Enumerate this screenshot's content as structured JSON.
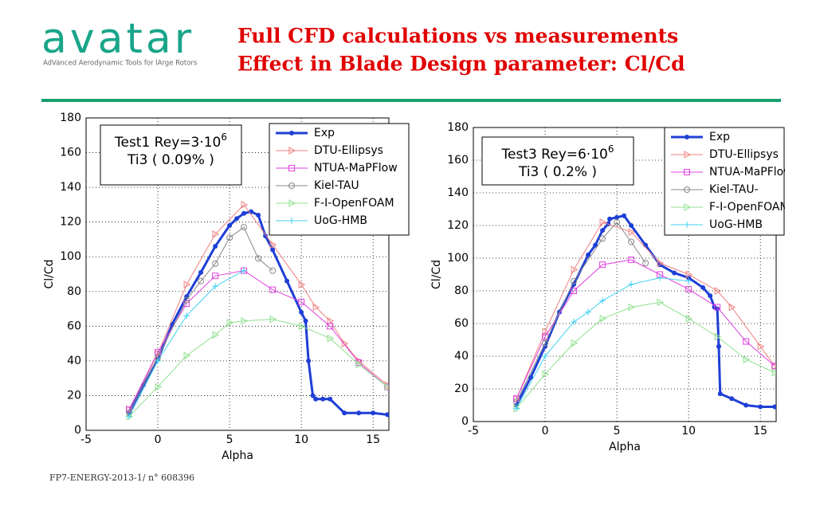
{
  "header": {
    "logo": "avatar",
    "tagline": "AdVanced Aerodynamic Tools for lArge Rotors",
    "title": [
      "Full CFD calculations vs measurements",
      "Effect in Blade Design parameter: Cl/Cd"
    ]
  },
  "footer": "FP7-ENERGY-2013-1/ n° 608396",
  "chart_data": [
    {
      "type": "line",
      "x_label": "Alpha",
      "y_label": "Cl/Cd",
      "annotation": {
        "text": "Test1 Rey=3·10",
        "exponent": "6",
        "line2": "Ti3 ( 0.09% )"
      },
      "xlim": [
        -5,
        16.1
      ],
      "xticks": [
        -5,
        0,
        5,
        10,
        15
      ],
      "ylim": [
        0,
        180
      ],
      "yticks": [
        0,
        20,
        40,
        60,
        80,
        100,
        120,
        140,
        160,
        180
      ],
      "grid": true,
      "series": [
        {
          "name": "Exp",
          "color": "#1f3fd6",
          "marker": "dot",
          "width": 3,
          "x": [
            -2,
            -1,
            0,
            1,
            2,
            3,
            4,
            5,
            5.5,
            6,
            6.5,
            7,
            7.5,
            8,
            9,
            10,
            10.3,
            10.5,
            10.8,
            11,
            11.5,
            12,
            13,
            14,
            15,
            16
          ],
          "values": [
            10,
            26,
            41,
            61,
            77,
            91,
            106,
            118,
            122,
            125,
            126,
            124,
            112,
            104,
            86,
            68,
            63,
            40,
            20,
            18,
            18,
            18,
            10,
            10,
            10,
            9
          ]
        },
        {
          "name": "DTU-Ellipsys",
          "color": "#f08080",
          "marker": "triangle",
          "width": 1,
          "x": [
            -2,
            0,
            2,
            4,
            6,
            8,
            10,
            11,
            12,
            13,
            14,
            16
          ],
          "values": [
            12,
            44,
            84,
            113,
            130,
            107,
            84,
            71,
            63,
            50,
            40,
            26
          ]
        },
        {
          "name": "NTUA-MaPFlow",
          "color": "#e040e0",
          "marker": "square",
          "width": 1,
          "x": [
            -2,
            0,
            2,
            4,
            6,
            8,
            10,
            12,
            14,
            16
          ],
          "values": [
            12,
            45,
            73,
            89,
            92,
            81,
            74,
            60,
            39,
            25
          ]
        },
        {
          "name": "Kiel-TAU",
          "color": "#888888",
          "marker": "circle",
          "width": 1,
          "x": [
            -2,
            0,
            2,
            3,
            4,
            5,
            6,
            7,
            8
          ],
          "values": [
            10,
            42,
            75,
            86,
            96,
            111,
            117,
            99,
            92
          ]
        },
        {
          "name": "F-I-OpenFOAM",
          "color": "#90e090",
          "marker": "triangle",
          "width": 1,
          "x": [
            -2,
            0,
            2,
            4,
            5,
            6,
            8,
            10,
            12,
            14,
            16
          ],
          "values": [
            8,
            25,
            43,
            55,
            62,
            63,
            64,
            60,
            53,
            38,
            25
          ]
        },
        {
          "name": "UoG-HMB",
          "color": "#40d0f0",
          "marker": "plus",
          "width": 1,
          "x": [
            -2,
            0,
            2,
            4,
            6
          ],
          "values": [
            8,
            40,
            66,
            83,
            92
          ]
        }
      ]
    },
    {
      "type": "line",
      "x_label": "Alpha",
      "y_label": "Cl/Cd",
      "annotation": {
        "text": "Test3 Rey=6·10",
        "exponent": "6",
        "line2": "Ti3 ( 0.2% )"
      },
      "xlim": [
        -5,
        16.1
      ],
      "xticks": [
        -5,
        0,
        5,
        10,
        15
      ],
      "ylim": [
        0,
        180
      ],
      "yticks": [
        0,
        20,
        40,
        60,
        80,
        100,
        120,
        140,
        160,
        180
      ],
      "grid": true,
      "series": [
        {
          "name": "Exp",
          "color": "#1f3fd6",
          "marker": "dot",
          "width": 3,
          "x": [
            -2,
            -1,
            0,
            1,
            2,
            3,
            3.5,
            4,
            4.4,
            4.5,
            5,
            5.5,
            6,
            7,
            8,
            9,
            10,
            11,
            11.5,
            11.8,
            12,
            12.1,
            12.2,
            13,
            14,
            15,
            16
          ],
          "values": [
            10,
            27,
            46,
            67,
            84,
            102,
            108,
            117,
            121,
            124,
            125,
            126,
            120,
            108,
            96,
            91,
            88,
            82,
            77,
            70,
            69,
            46,
            17,
            14,
            10,
            9,
            9
          ]
        },
        {
          "name": "DTU-Ellipsys",
          "color": "#f08080",
          "marker": "triangle",
          "width": 1,
          "x": [
            -2,
            0,
            2,
            4,
            6,
            8,
            10,
            12,
            13,
            15,
            16
          ],
          "values": [
            14,
            55,
            93,
            122,
            116,
            97,
            90,
            80,
            70,
            46,
            34
          ]
        },
        {
          "name": "NTUA-MaPFlow",
          "color": "#e040e0",
          "marker": "square",
          "width": 1,
          "x": [
            -2,
            0,
            2,
            4,
            6,
            8,
            10,
            12,
            14,
            16
          ],
          "values": [
            14,
            52,
            80,
            96,
            99,
            90,
            81,
            70,
            49,
            34
          ]
        },
        {
          "name": "Kiel-TAU-",
          "color": "#888888",
          "marker": "circle",
          "width": 1,
          "x": [
            -2,
            0,
            2,
            4,
            5,
            6,
            7
          ],
          "values": [
            12,
            48,
            86,
            112,
            122,
            110,
            97
          ]
        },
        {
          "name": "F-I-OpenFOAM",
          "color": "#90e090",
          "marker": "triangle",
          "width": 1,
          "x": [
            -2,
            0,
            2,
            4,
            6,
            8,
            10,
            12,
            14,
            16
          ],
          "values": [
            8,
            29,
            48,
            63,
            70,
            73,
            63,
            52,
            38,
            30
          ]
        },
        {
          "name": "UoG-HMB",
          "color": "#40d0f0",
          "marker": "plus",
          "width": 1,
          "x": [
            -2,
            0,
            2,
            3,
            4,
            6,
            8,
            10
          ],
          "values": [
            8,
            40,
            61,
            67,
            74,
            84,
            88,
            86
          ]
        }
      ]
    }
  ]
}
